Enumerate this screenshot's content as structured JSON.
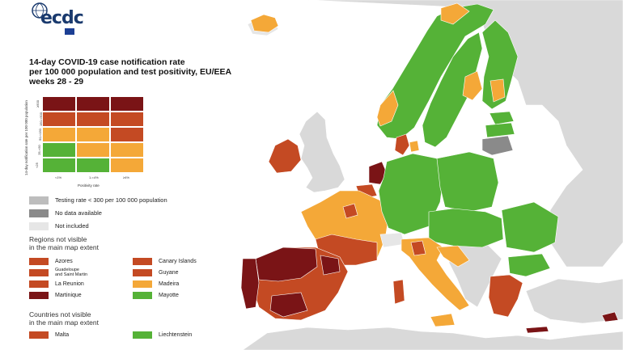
{
  "colors": {
    "sea": "#ffffff",
    "land_other": "#d9d9d9",
    "green": "#55b237",
    "orange": "#f4a838",
    "red": "#c44a23",
    "dark_red": "#7a1416",
    "grey_light": "#bdbdbd",
    "grey_dark": "#8a8a8a",
    "not_included": "#e6e6e6",
    "logo_blue": "#1a3a6e"
  },
  "header": {
    "logo_text": "ecdc",
    "logo_icon": "globe-icon"
  },
  "title": {
    "line1": "14-day COVID-19 case notification rate",
    "line2": "per 100 000 population and test positivity, EU/EEA",
    "line3": "weeks 28 - 29"
  },
  "matrix": {
    "y_axis_label": "14-day notification rate per 100 000 population",
    "x_axis_label": "Positivity rate",
    "x_ticks": [
      "<1%",
      "1-<4%",
      "≥4%"
    ],
    "y_ticks": [
      "<25",
      "25-<50",
      "50-<150",
      "150-<500",
      "≥500"
    ],
    "rows_top_to_bottom": [
      [
        "dark_red",
        "dark_red",
        "dark_red"
      ],
      [
        "red",
        "red",
        "red"
      ],
      [
        "orange",
        "orange",
        "red"
      ],
      [
        "green",
        "orange",
        "orange"
      ],
      [
        "green",
        "green",
        "orange"
      ]
    ]
  },
  "legend": {
    "testing_rate": "Testing rate < 300 per 100 000 population",
    "no_data": "No data available",
    "not_included": "Not included",
    "regions_heading_1": "Regions not visible",
    "regions_heading_2": "in the main map extent",
    "regions": [
      {
        "label": "Azores",
        "color": "red"
      },
      {
        "label": "Canary Islands",
        "color": "red"
      },
      {
        "label": "Guadeloupe\nand Saint Martin",
        "color": "red"
      },
      {
        "label": "Guyane",
        "color": "red"
      },
      {
        "label": "La Reunion",
        "color": "red"
      },
      {
        "label": "Madeira",
        "color": "orange"
      },
      {
        "label": "Martinique",
        "color": "dark_red"
      },
      {
        "label": "Mayotte",
        "color": "green"
      }
    ],
    "countries_heading_1": "Countries not visible",
    "countries_heading_2": "in the main map extent",
    "countries": [
      {
        "label": "Malta",
        "color": "red"
      },
      {
        "label": "Liechtenstein",
        "color": "green"
      }
    ]
  }
}
